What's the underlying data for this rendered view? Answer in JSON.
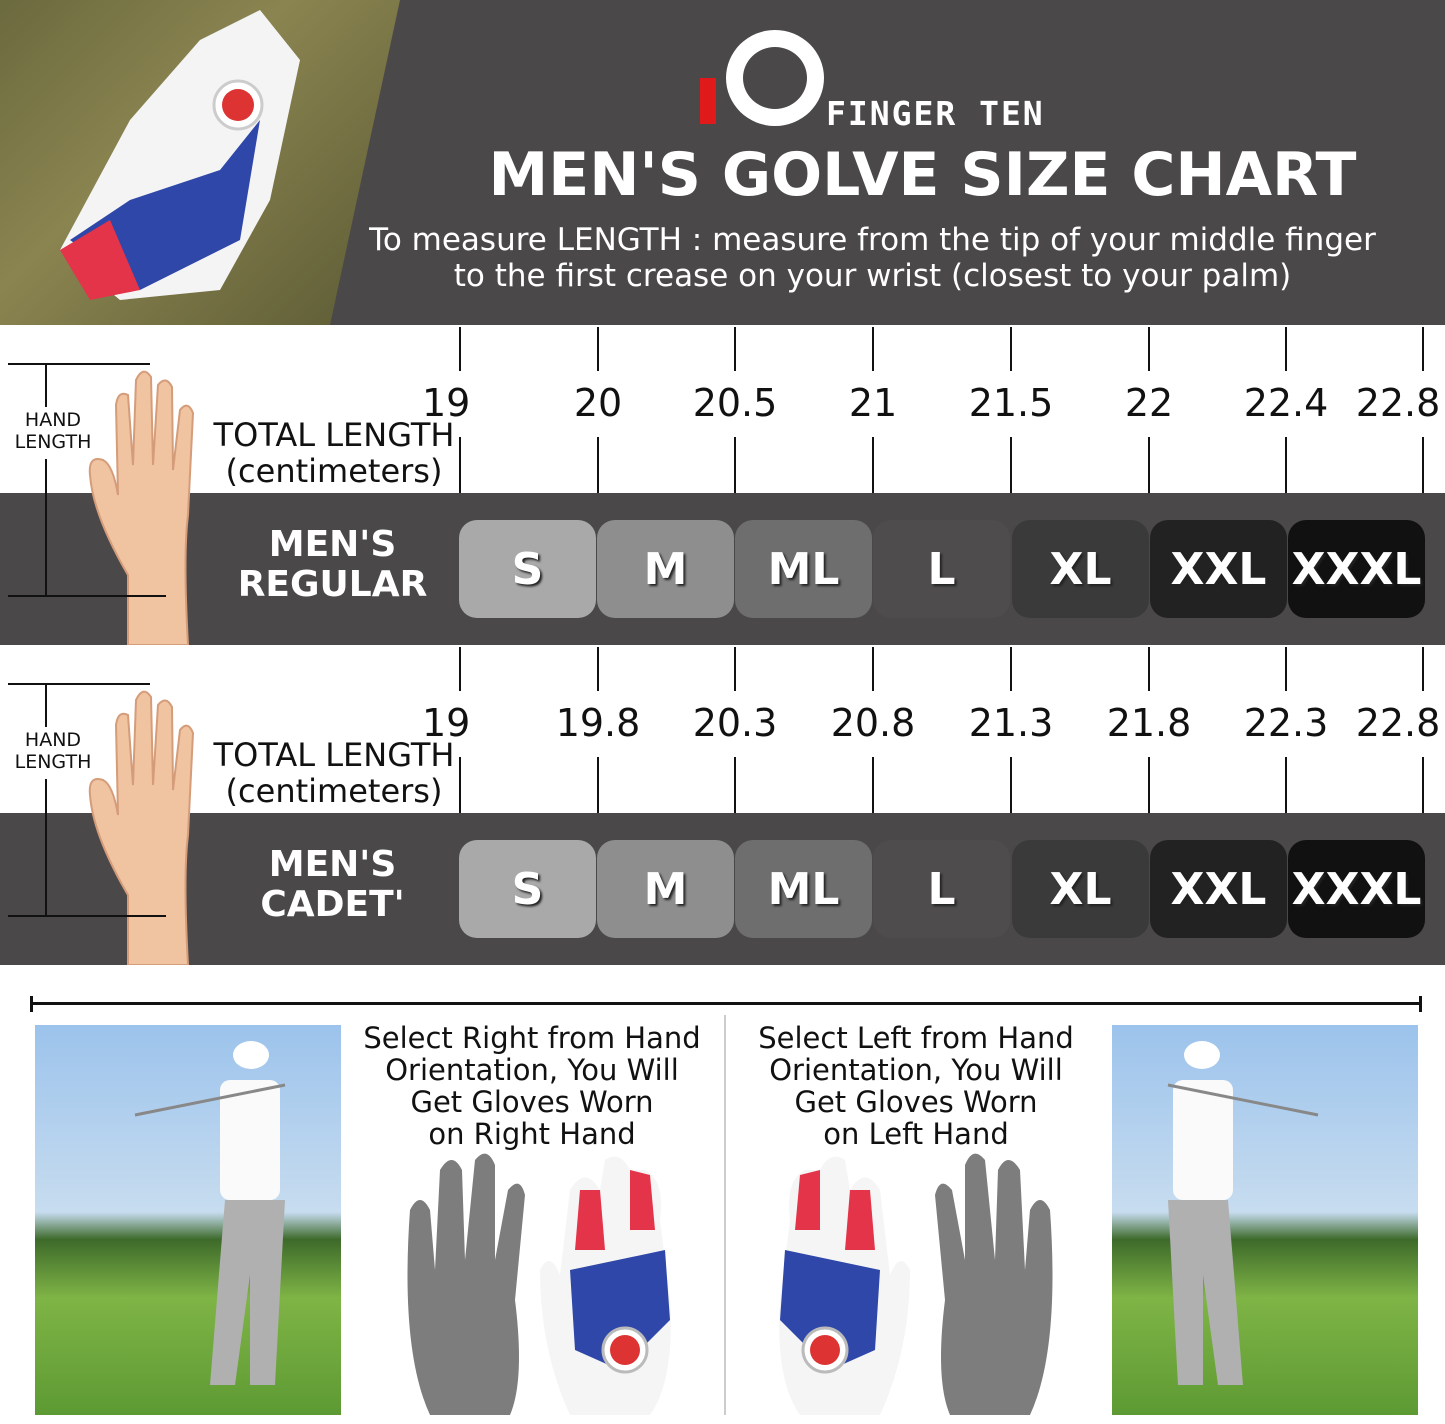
{
  "brand": {
    "logo_text": "FINGER TEN",
    "logo_accent": "#e01a1a"
  },
  "header": {
    "title": "MEN'S GOLVE SIZE CHART",
    "subtitle_line1": "To measure LENGTH : measure from the tip of your middle finger",
    "subtitle_line2": "to the first crease on your wrist (closest to your palm)"
  },
  "charts": [
    {
      "hand_label_line1": "HAND",
      "hand_label_line2": "LENGTH",
      "length_label_line1": "TOTAL LENGTH",
      "length_label_line2": "(centimeters)",
      "ticks": [
        "19",
        "20",
        "20.5",
        "21",
        "21.5",
        "22",
        "22.4",
        "22.8"
      ],
      "row_label_line1": "MEN'S",
      "row_label_line2": "REGULAR",
      "sizes": [
        "S",
        "M",
        "ML",
        "L",
        "XL",
        "XXL",
        "XXXL"
      ]
    },
    {
      "hand_label_line1": "HAND",
      "hand_label_line2": "LENGTH",
      "length_label_line1": "TOTAL LENGTH",
      "length_label_line2": "(centimeters)",
      "ticks": [
        "19",
        "19.8",
        "20.3",
        "20.8",
        "21.3",
        "21.8",
        "22.3",
        "22.8"
      ],
      "row_label_line1": "MEN'S",
      "row_label_line2": "CADET'",
      "sizes": [
        "S",
        "M",
        "ML",
        "L",
        "XL",
        "XXL",
        "XXXL"
      ]
    }
  ],
  "size_colors": [
    "#a9a9a9",
    "#8e8e8e",
    "#6e6e6e",
    "#4e4c4d",
    "#3b3a3b",
    "#222222",
    "#111111"
  ],
  "orientation": {
    "right": {
      "line1": "Select Right from Hand",
      "line2": "Orientation, You Will",
      "line3": "Get Gloves Worn",
      "line4": "on Right Hand"
    },
    "left": {
      "line1": "Select Left from Hand",
      "line2": "Orientation, You Will",
      "line3": "Get Gloves Worn",
      "line4": "on Left Hand"
    }
  }
}
